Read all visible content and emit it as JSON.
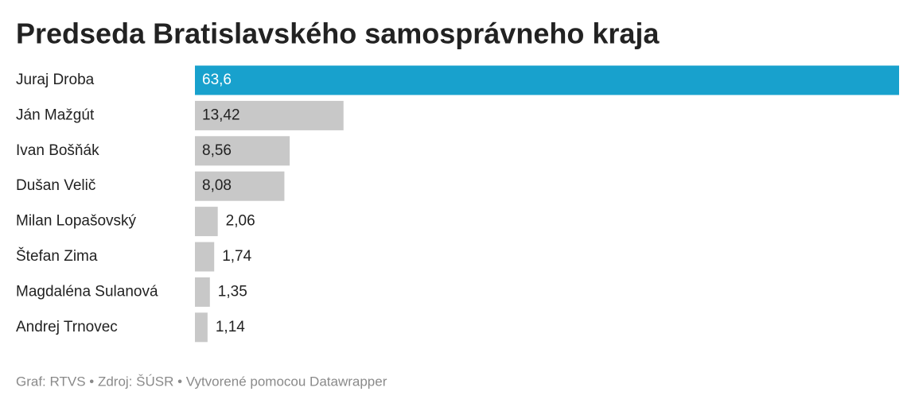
{
  "chart_data": {
    "type": "bar",
    "title": "Predseda Bratislavského samosprávneho kraja",
    "categories": [
      "Juraj Droba",
      "Ján Mažgút",
      "Ivan Bošňák",
      "Dušan Velič",
      "Milan Lopašovský",
      "Štefan Zima",
      "Magdaléna Sulanová",
      "Andrej Trnovec"
    ],
    "values": [
      63.6,
      13.42,
      8.56,
      8.08,
      2.06,
      1.74,
      1.35,
      1.14
    ],
    "value_labels": [
      "63,6",
      "13,42",
      "8,56",
      "8,08",
      "2,06",
      "1,74",
      "1,35",
      "1,14"
    ],
    "colors": [
      "#18a1cd",
      "#c8c8c8",
      "#c8c8c8",
      "#c8c8c8",
      "#c8c8c8",
      "#c8c8c8",
      "#c8c8c8",
      "#c8c8c8"
    ],
    "footer": "Graf: RTVS • Zdroj: ŠÚSR • Vytvorené pomocou Datawrapper"
  }
}
